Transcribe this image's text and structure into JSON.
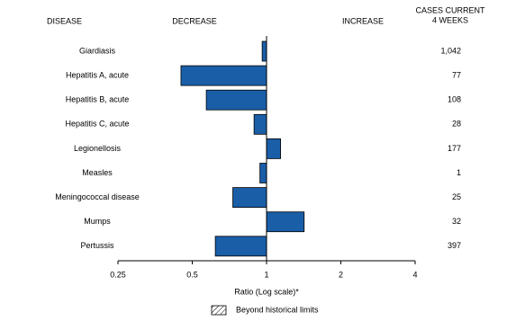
{
  "chart_data": {
    "type": "bar",
    "orientation": "horizontal",
    "headers": {
      "disease": "DISEASE",
      "decrease": "DECREASE",
      "increase": "INCREASE",
      "cases": [
        "CASES CURRENT",
        "4 WEEKS"
      ]
    },
    "categories": [
      "Giardiasis",
      "Hepatitis A, acute",
      "Hepatitis B, acute",
      "Hepatitis C, acute",
      "Legionellosis",
      "Measles",
      "Meningococcal disease",
      "Mumps",
      "Pertussis"
    ],
    "values": [
      0.96,
      0.45,
      0.57,
      0.89,
      1.14,
      0.94,
      0.73,
      1.42,
      0.62
    ],
    "color": "#1a5ea8",
    "cases": {
      "values": [
        1042,
        77,
        108,
        28,
        177,
        1,
        25,
        32,
        397
      ],
      "value_labels": [
        "1,042",
        "77",
        "108",
        "28",
        "177",
        "1",
        "25",
        "32",
        "397"
      ]
    },
    "log_scale": true,
    "xlim": [
      0.25,
      4
    ],
    "xticks": [
      0.25,
      0.5,
      1,
      2,
      4
    ],
    "xlabel": "Ratio (Log scale)*",
    "legend": "Beyond historical limits"
  }
}
